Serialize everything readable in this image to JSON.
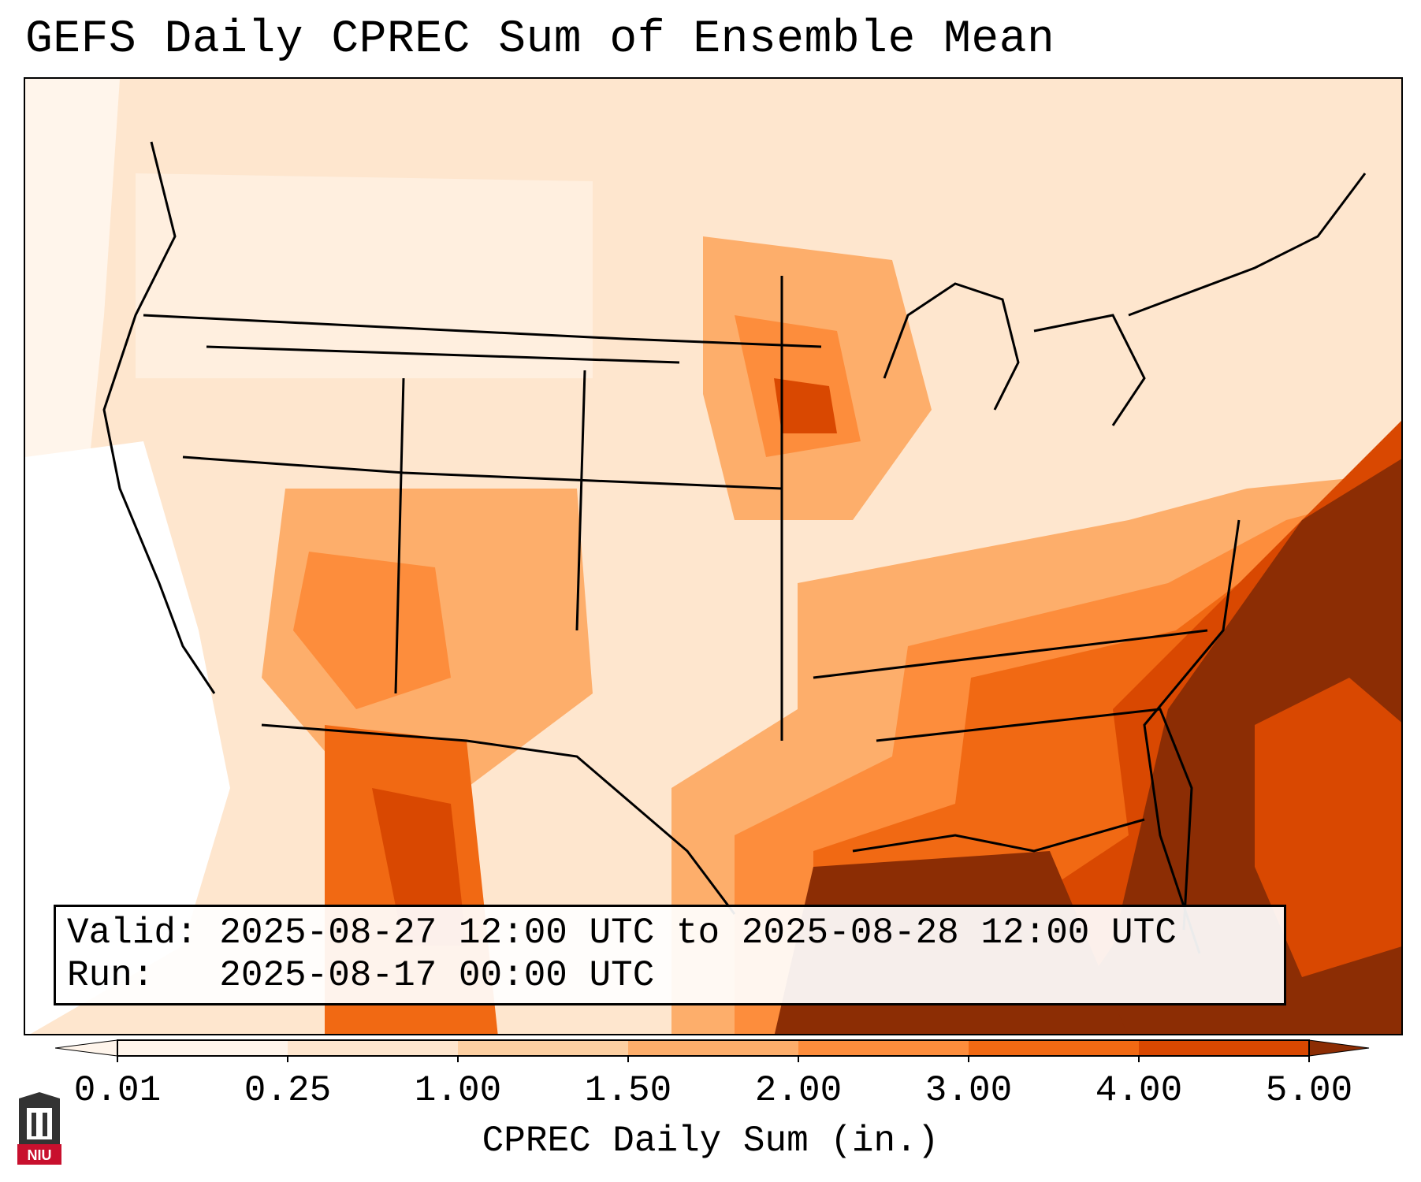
{
  "title": "GEFS Daily CPREC Sum of Ensemble Mean",
  "info": {
    "valid": "Valid: 2025-08-27 12:00 UTC to 2025-08-28 12:00 UTC",
    "run": "Run:   2025-08-17 00:00 UTC"
  },
  "colorbar": {
    "label": "CPREC Daily Sum (in.)",
    "ticks": [
      "0.01",
      "0.25",
      "1.00",
      "1.50",
      "2.00",
      "3.00",
      "4.00",
      "5.00"
    ],
    "colors": [
      "#fff5eb",
      "#fee6ce",
      "#fdd0a2",
      "#fdae6b",
      "#fd8d3c",
      "#f16913",
      "#d94801",
      "#8c2d04"
    ]
  },
  "logo": {
    "text": "NIU"
  }
}
